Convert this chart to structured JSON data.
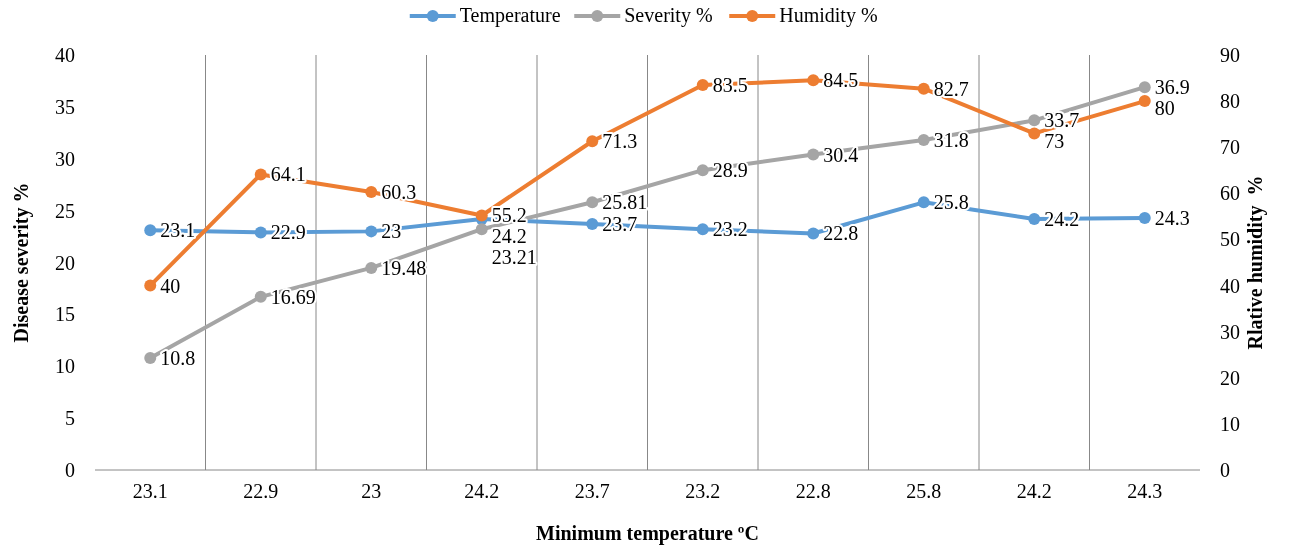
{
  "chart_data": {
    "type": "line",
    "xlabel": "Minimum temperature ºC",
    "ylabel": "Disease severity %",
    "y2label": "Rlative humidity  %",
    "categories": [
      "23.1",
      "22.9",
      "23",
      "24.2",
      "23.7",
      "23.2",
      "22.8",
      "25.8",
      "24.2",
      "24.3"
    ],
    "series": [
      {
        "name": "Temperature",
        "color": "#5b9bd5",
        "values": [
          23.1,
          22.9,
          23,
          24.2,
          23.7,
          23.2,
          22.8,
          25.8,
          24.2,
          24.3
        ]
      },
      {
        "name": "Severity %",
        "color": "#a5a5a5",
        "values": [
          10.8,
          16.69,
          19.48,
          23.21,
          25.81,
          28.9,
          30.4,
          31.8,
          33.7,
          36.9
        ]
      },
      {
        "name": "Humidity %",
        "color": "#ed7d31",
        "axis": "y2",
        "values": [
          40,
          64.1,
          60.3,
          55.2,
          71.3,
          83.5,
          84.5,
          82.7,
          73,
          80
        ]
      }
    ],
    "ylim": [
      0,
      40
    ],
    "yticks": [
      0,
      5,
      10,
      15,
      20,
      25,
      30,
      35,
      40
    ],
    "y2lim": [
      0,
      90
    ],
    "y2ticks": [
      0,
      10,
      20,
      30,
      40,
      50,
      60,
      70,
      80,
      90
    ],
    "grid": "x",
    "legend": "top",
    "marker": "circle",
    "line_style": "solid",
    "data_labels": true
  }
}
